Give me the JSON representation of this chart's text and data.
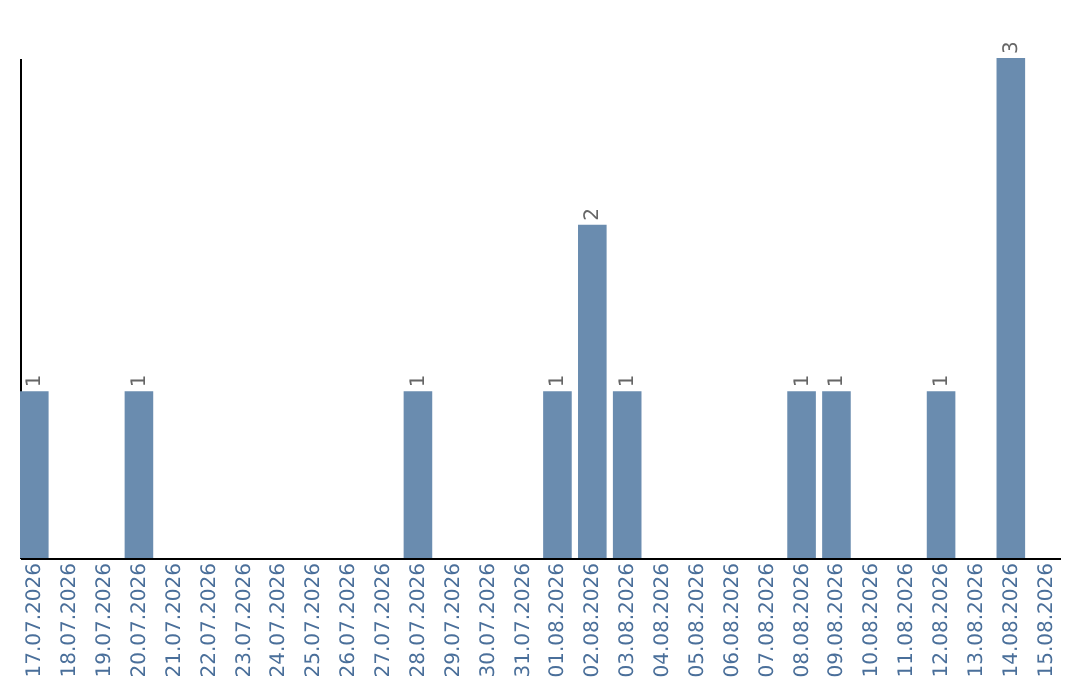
{
  "chart_data": {
    "type": "bar",
    "categories": [
      "17.07.2026",
      "18.07.2026",
      "19.07.2026",
      "20.07.2026",
      "21.07.2026",
      "22.07.2026",
      "23.07.2026",
      "24.07.2026",
      "25.07.2026",
      "26.07.2026",
      "27.07.2026",
      "28.07.2026",
      "29.07.2026",
      "30.07.2026",
      "31.07.2026",
      "01.08.2026",
      "02.08.2026",
      "03.08.2026",
      "04.08.2026",
      "05.08.2026",
      "06.08.2026",
      "07.08.2026",
      "08.08.2026",
      "09.08.2026",
      "10.08.2026",
      "11.08.2026",
      "12.08.2026",
      "13.08.2026",
      "14.08.2026",
      "15.08.2026"
    ],
    "values": [
      1,
      0,
      0,
      1,
      0,
      0,
      0,
      0,
      0,
      0,
      0,
      1,
      0,
      0,
      0,
      1,
      2,
      1,
      0,
      0,
      0,
      0,
      1,
      1,
      0,
      0,
      1,
      0,
      3,
      0
    ],
    "value_labels": [
      "1",
      null,
      null,
      "1",
      null,
      null,
      null,
      null,
      null,
      null,
      null,
      "1",
      null,
      null,
      null,
      "1",
      "2",
      "1",
      null,
      null,
      null,
      null,
      "1",
      "1",
      null,
      null,
      "1",
      null,
      "3",
      null
    ],
    "color": "#6a8caf",
    "tick_labels": "x",
    "grid": false
  }
}
